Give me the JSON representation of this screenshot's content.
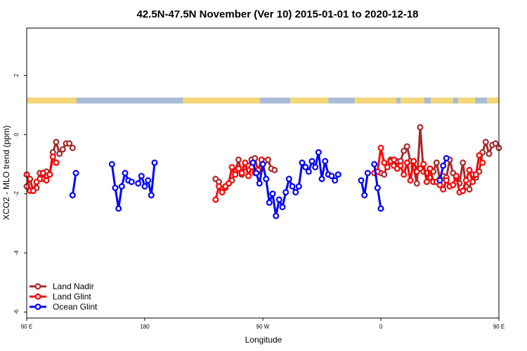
{
  "chart_data": {
    "type": "line",
    "title": "42.5N-47.5N November (Ver 10)   2015-01-01 to 2020-12-18",
    "xlabel": "Longitude",
    "ylabel": "XCO2 - MLO trend (ppm)",
    "xlim": [
      90,
      450
    ],
    "ylim": [
      -6.2,
      3.6
    ],
    "x_ticks": [
      {
        "value": 90,
        "label": "90 E"
      },
      {
        "value": 180,
        "label": "180"
      },
      {
        "value": 270,
        "label": "90 W"
      },
      {
        "value": 360,
        "label": "0"
      },
      {
        "value": 450,
        "label": "90 E"
      },
      {
        "value": 540,
        "label": "180"
      }
    ],
    "y_ticks": [
      {
        "value": -6,
        "label": "-6"
      },
      {
        "value": -4,
        "label": "-4"
      },
      {
        "value": -2,
        "label": "-2"
      },
      {
        "value": 0,
        "label": "0"
      },
      {
        "value": 2,
        "label": "2"
      }
    ],
    "land_sea_bar": {
      "y_range": [
        1.05,
        1.25
      ],
      "land_color": "#f5d77a",
      "ocean_color": "#a9bcd8",
      "land_segments": [
        [
          90,
          128
        ],
        [
          209,
          268
        ],
        [
          291,
          320
        ],
        [
          340,
          372
        ],
        [
          375,
          393
        ],
        [
          398,
          415
        ],
        [
          419,
          432
        ],
        [
          441,
          460
        ],
        [
          473,
          524
        ],
        [
          533,
          538
        ]
      ]
    },
    "legend": {
      "position": "bottom-left",
      "entries": [
        {
          "label": "Land Nadir",
          "color": "#a52a2a"
        },
        {
          "label": "Land Glint",
          "color": "#ff0000"
        },
        {
          "label": "Ocean Glint",
          "color": "#0000ff"
        }
      ]
    },
    "series": [
      {
        "name": "Land Nadir",
        "color": "#a52a2a",
        "segments": [
          [
            [
              90,
              -1.75
            ],
            [
              92.5,
              -1.5
            ],
            [
              95,
              -1.9
            ],
            [
              97.5,
              -1.8
            ],
            [
              100,
              -1.3
            ],
            [
              102.5,
              -1.5
            ],
            [
              105,
              -1.25
            ],
            [
              107.5,
              -1.35
            ],
            [
              110,
              -0.6
            ],
            [
              112.5,
              -0.25
            ],
            [
              115,
              -0.65
            ],
            [
              117.5,
              -0.5
            ],
            [
              120,
              -0.3
            ],
            [
              122.5,
              -0.3
            ],
            [
              125,
              -0.45
            ]
          ],
          [
            [
              234,
              -1.5
            ],
            [
              236.5,
              -1.6
            ],
            [
              239,
              -1.85
            ],
            [
              241.5,
              -1.8
            ],
            [
              244,
              -1.65
            ],
            [
              246.5,
              -1.55
            ],
            [
              249,
              -1.25
            ],
            [
              251.5,
              -0.85
            ],
            [
              254,
              -1.35
            ],
            [
              256.5,
              -1.1
            ],
            [
              259,
              -1.05
            ],
            [
              261.5,
              -0.85
            ],
            [
              264,
              -0.8
            ],
            [
              266.5,
              -1.25
            ],
            [
              269,
              -1.15
            ],
            [
              271.5,
              -0.9
            ],
            [
              274,
              -0.85
            ],
            [
              276.5,
              -1.15
            ],
            [
              279,
              -1.2
            ]
          ],
          [
            [
              360,
              -1.3
            ],
            [
              362.5,
              -1.35
            ],
            [
              365,
              -1.0
            ],
            [
              367.5,
              -0.85
            ],
            [
              370,
              -1.05
            ],
            [
              372.5,
              -0.9
            ],
            [
              375,
              -0.9
            ],
            [
              377.5,
              -0.55
            ],
            [
              380,
              -0.4
            ],
            [
              382.5,
              -0.9
            ],
            [
              385,
              -1.1
            ],
            [
              387.5,
              -1.65
            ],
            [
              390,
              0.25
            ],
            [
              392.5,
              -1.25
            ],
            [
              395,
              -1.3
            ],
            [
              397.5,
              -1.45
            ],
            [
              400,
              -1.25
            ],
            [
              402.5,
              -0.95
            ],
            [
              405,
              -1.5
            ],
            [
              407.5,
              -1.4
            ],
            [
              410,
              -1.45
            ],
            [
              412.5,
              -0.85
            ],
            [
              415,
              -1.3
            ],
            [
              417.5,
              -1.45
            ],
            [
              420,
              -1.65
            ],
            [
              422.5,
              -0.95
            ],
            [
              425,
              -1.75
            ],
            [
              427.5,
              -1.85
            ],
            [
              430,
              -1.35
            ],
            [
              432.5,
              -1.45
            ],
            [
              435,
              -1.25
            ],
            [
              437.5,
              -0.6
            ],
            [
              440,
              -0.25
            ],
            [
              442.5,
              -0.65
            ],
            [
              445,
              -0.35
            ],
            [
              447.5,
              -0.3
            ],
            [
              450,
              -0.45
            ]
          ]
        ]
      },
      {
        "name": "Land Glint",
        "color": "#ff0000",
        "segments": [
          [
            [
              90,
              -1.35
            ],
            [
              92.5,
              -1.9
            ],
            [
              95,
              -1.9
            ],
            [
              97.5,
              -1.6
            ],
            [
              100,
              -1.5
            ],
            [
              102.5,
              -1.3
            ],
            [
              105,
              -1.55
            ],
            [
              107.5,
              -1.35
            ],
            [
              110,
              -0.75
            ],
            [
              112.5,
              -0.95
            ]
          ],
          [
            [
              234,
              -2.2
            ],
            [
              236.5,
              -1.75
            ],
            [
              239,
              -1.95
            ],
            [
              241.5,
              -1.75
            ],
            [
              244,
              -1.65
            ],
            [
              246.5,
              -1.1
            ],
            [
              249,
              -1.35
            ],
            [
              251.5,
              -1.15
            ],
            [
              254,
              -1.3
            ],
            [
              256.5,
              -0.95
            ],
            [
              259,
              -1.4
            ],
            [
              261.5,
              -1.1
            ],
            [
              264,
              -1.3
            ],
            [
              266.5,
              -1.2
            ],
            [
              269,
              -0.85
            ]
          ],
          [
            [
              355,
              -1.3
            ],
            [
              357.5,
              -1.25
            ],
            [
              360,
              -0.45
            ],
            [
              362.5,
              -0.95
            ],
            [
              365,
              -1.1
            ],
            [
              367.5,
              -0.9
            ],
            [
              370,
              -0.85
            ],
            [
              372.5,
              -1.15
            ],
            [
              375,
              -1.05
            ],
            [
              377.5,
              -1.35
            ],
            [
              380,
              -0.95
            ],
            [
              382.5,
              -1.55
            ],
            [
              385,
              -0.9
            ],
            [
              387.5,
              -1.25
            ],
            [
              390,
              -1.15
            ],
            [
              392.5,
              -1.0
            ],
            [
              395,
              -1.6
            ],
            [
              397.5,
              -1.15
            ],
            [
              400,
              -1.6
            ],
            [
              402.5,
              -1.6
            ],
            [
              405,
              -1.7
            ],
            [
              407.5,
              -1.85
            ],
            [
              410,
              -1.55
            ],
            [
              412.5,
              -1.75
            ],
            [
              415,
              -1.7
            ],
            [
              417.5,
              -1.4
            ],
            [
              420,
              -1.95
            ],
            [
              422.5,
              -1.9
            ],
            [
              425,
              -1.55
            ],
            [
              427.5,
              -1.2
            ],
            [
              430,
              -1.6
            ],
            [
              432.5,
              -1.35
            ],
            [
              435,
              -0.7
            ],
            [
              437.5,
              -0.95
            ]
          ]
        ]
      },
      {
        "name": "Ocean Glint",
        "color": "#0000ff",
        "segments": [
          [
            [
              125,
              -2.05
            ],
            [
              127.5,
              -1.3
            ]
          ],
          [
            [
              155,
              -1.0
            ],
            [
              157.5,
              -1.8
            ],
            [
              160,
              -2.5
            ],
            [
              162.5,
              -1.75
            ],
            [
              165,
              -1.3
            ],
            [
              167.5,
              -1.55
            ],
            [
              170,
              -1.6
            ]
          ],
          [
            [
              175,
              -1.65
            ],
            [
              177.5,
              -1.4
            ],
            [
              180,
              -1.75
            ],
            [
              182.5,
              -1.55
            ],
            [
              185,
              -2.05
            ],
            [
              187.5,
              -0.95
            ]
          ],
          [
            [
              262.5,
              -0.95
            ],
            [
              265,
              -1.3
            ],
            [
              267.5,
              -1.65
            ],
            [
              270,
              -1.0
            ],
            [
              272.5,
              -1.5
            ],
            [
              275,
              -2.3
            ],
            [
              277.5,
              -2.0
            ],
            [
              280,
              -2.75
            ],
            [
              282.5,
              -2.2
            ],
            [
              285,
              -2.45
            ],
            [
              287.5,
              -1.95
            ],
            [
              290,
              -1.5
            ],
            [
              292.5,
              -1.75
            ],
            [
              295,
              -1.95
            ],
            [
              297.5,
              -1.75
            ],
            [
              300,
              -0.95
            ],
            [
              302.5,
              -1.1
            ],
            [
              305,
              -1.25
            ],
            [
              307.5,
              -0.9
            ],
            [
              310,
              -1.1
            ],
            [
              312.5,
              -0.6
            ],
            [
              315,
              -1.5
            ],
            [
              317.5,
              -0.9
            ],
            [
              320,
              -1.35
            ],
            [
              322.5,
              -1.4
            ],
            [
              325,
              -1.55
            ],
            [
              327.5,
              -1.35
            ]
          ],
          [
            [
              345,
              -1.55
            ],
            [
              347.5,
              -2.05
            ],
            [
              350,
              -1.3
            ]
          ],
          [
            [
              355,
              -1.0
            ],
            [
              357.5,
              -1.8
            ],
            [
              360,
              -2.5
            ]
          ],
          [
            [
              405,
              -1.55
            ],
            [
              407.5,
              -1.05
            ],
            [
              410,
              -0.8
            ]
          ]
        ]
      }
    ]
  }
}
